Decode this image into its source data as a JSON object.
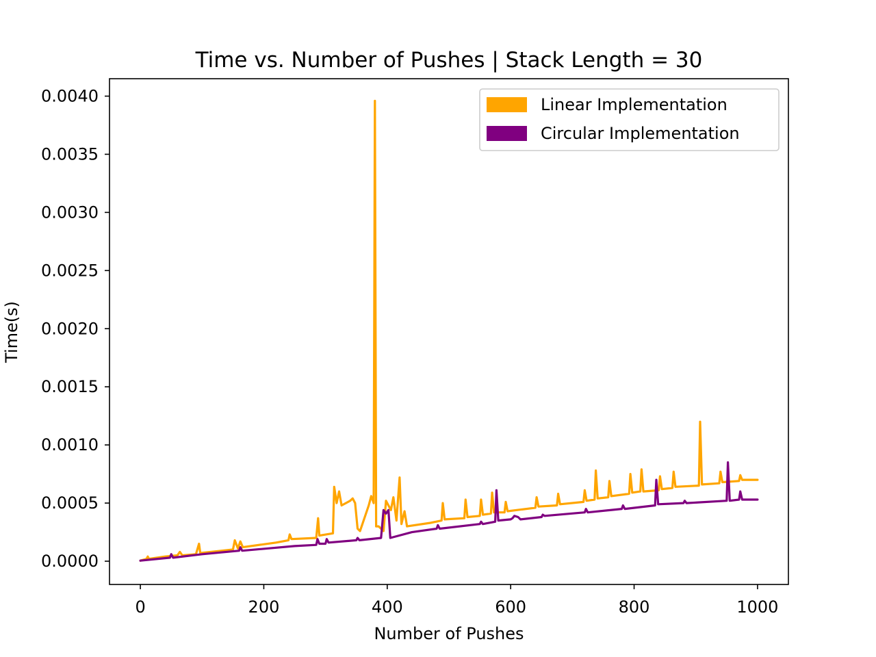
{
  "chart_data": {
    "type": "line",
    "title": "Time vs. Number of Pushes | Stack Length = 30",
    "xlabel": "Number of Pushes",
    "ylabel": "Time(s)",
    "xlim": [
      -50,
      1050
    ],
    "ylim": [
      -0.0002,
      0.00415
    ],
    "xticks": [
      0,
      200,
      400,
      600,
      800,
      1000
    ],
    "xtick_labels": [
      "0",
      "200",
      "400",
      "600",
      "800",
      "1000"
    ],
    "yticks": [
      0,
      0.0005,
      0.001,
      0.0015,
      0.002,
      0.0025,
      0.003,
      0.0035,
      0.004
    ],
    "ytick_labels": [
      "0.0000",
      "0.0005",
      "0.0010",
      "0.0015",
      "0.0020",
      "0.0025",
      "0.0030",
      "0.0035",
      "0.0040"
    ],
    "grid": false,
    "legend_position": "top-right",
    "series": [
      {
        "name": "Linear Implementation",
        "color": "#ffa500",
        "points": [
          [
            0,
            5e-06
          ],
          [
            10,
            2e-05
          ],
          [
            12,
            4e-05
          ],
          [
            14,
            2e-05
          ],
          [
            40,
            4e-05
          ],
          [
            60,
            5e-05
          ],
          [
            64,
            8e-05
          ],
          [
            68,
            5e-05
          ],
          [
            90,
            6e-05
          ],
          [
            95,
            0.00015
          ],
          [
            97,
            7e-05
          ],
          [
            150,
            0.0001
          ],
          [
            153,
            0.00018
          ],
          [
            158,
            0.00011
          ],
          [
            162,
            0.00017
          ],
          [
            166,
            0.00012
          ],
          [
            220,
            0.00016
          ],
          [
            240,
            0.00018
          ],
          [
            242,
            0.00023
          ],
          [
            245,
            0.00019
          ],
          [
            285,
            0.0002
          ],
          [
            288,
            0.00037
          ],
          [
            290,
            0.00022
          ],
          [
            312,
            0.00024
          ],
          [
            314,
            0.00064
          ],
          [
            318,
            0.0005
          ],
          [
            322,
            0.0006
          ],
          [
            326,
            0.00048
          ],
          [
            340,
            0.00052
          ],
          [
            344,
            0.00054
          ],
          [
            348,
            0.0005
          ],
          [
            352,
            0.00028
          ],
          [
            356,
            0.00026
          ],
          [
            370,
            0.00048
          ],
          [
            374,
            0.00056
          ],
          [
            378,
            0.0005
          ],
          [
            380,
            0.00396
          ],
          [
            382,
            0.0003
          ],
          [
            386,
            0.0003
          ],
          [
            394,
            0.00026
          ],
          [
            398,
            0.00052
          ],
          [
            402,
            0.00048
          ],
          [
            406,
            0.00044
          ],
          [
            410,
            0.00055
          ],
          [
            415,
            0.00035
          ],
          [
            420,
            0.00072
          ],
          [
            423,
            0.00032
          ],
          [
            428,
            0.00043
          ],
          [
            432,
            0.0003
          ],
          [
            470,
            0.00033
          ],
          [
            488,
            0.00035
          ],
          [
            490,
            0.0005
          ],
          [
            493,
            0.00036
          ],
          [
            525,
            0.00037
          ],
          [
            527,
            0.00053
          ],
          [
            530,
            0.00038
          ],
          [
            550,
            0.00039
          ],
          [
            552,
            0.00053
          ],
          [
            555,
            0.0004
          ],
          [
            568,
            0.00041
          ],
          [
            570,
            0.00059
          ],
          [
            573,
            0.00042
          ],
          [
            590,
            0.00042
          ],
          [
            592,
            0.00051
          ],
          [
            595,
            0.00043
          ],
          [
            640,
            0.00046
          ],
          [
            642,
            0.00055
          ],
          [
            645,
            0.00047
          ],
          [
            675,
            0.00048
          ],
          [
            677,
            0.00058
          ],
          [
            680,
            0.00049
          ],
          [
            718,
            0.00051
          ],
          [
            720,
            0.00061
          ],
          [
            723,
            0.00052
          ],
          [
            736,
            0.00053
          ],
          [
            738,
            0.00078
          ],
          [
            741,
            0.00054
          ],
          [
            758,
            0.00055
          ],
          [
            760,
            0.00069
          ],
          [
            763,
            0.00056
          ],
          [
            792,
            0.00058
          ],
          [
            794,
            0.00075
          ],
          [
            797,
            0.00059
          ],
          [
            810,
            0.0006
          ],
          [
            812,
            0.00079
          ],
          [
            815,
            0.0006
          ],
          [
            840,
            0.00061
          ],
          [
            842,
            0.00073
          ],
          [
            845,
            0.00062
          ],
          [
            862,
            0.00063
          ],
          [
            864,
            0.00077
          ],
          [
            867,
            0.00064
          ],
          [
            905,
            0.00065
          ],
          [
            907,
            0.0012
          ],
          [
            910,
            0.00066
          ],
          [
            938,
            0.00067
          ],
          [
            940,
            0.00077
          ],
          [
            943,
            0.00068
          ],
          [
            970,
            0.00069
          ],
          [
            972,
            0.00074
          ],
          [
            975,
            0.0007
          ],
          [
            1000,
            0.0007
          ]
        ]
      },
      {
        "name": "Circular Implementation",
        "color": "#800080",
        "points": [
          [
            0,
            5e-06
          ],
          [
            48,
            3e-05
          ],
          [
            50,
            6e-05
          ],
          [
            53,
            3e-05
          ],
          [
            100,
            6e-05
          ],
          [
            160,
            9e-05
          ],
          [
            162,
            0.00012
          ],
          [
            165,
            9e-05
          ],
          [
            250,
            0.00013
          ],
          [
            285,
            0.00014
          ],
          [
            287,
            0.00019
          ],
          [
            290,
            0.00015
          ],
          [
            300,
            0.00015
          ],
          [
            302,
            0.00019
          ],
          [
            305,
            0.00016
          ],
          [
            350,
            0.00018
          ],
          [
            352,
            0.0002
          ],
          [
            355,
            0.00018
          ],
          [
            390,
            0.0002
          ],
          [
            394,
            0.00044
          ],
          [
            398,
            0.00041
          ],
          [
            402,
            0.00044
          ],
          [
            405,
            0.0002
          ],
          [
            440,
            0.00025
          ],
          [
            480,
            0.00028
          ],
          [
            482,
            0.00031
          ],
          [
            485,
            0.00028
          ],
          [
            550,
            0.00032
          ],
          [
            552,
            0.00034
          ],
          [
            555,
            0.00032
          ],
          [
            575,
            0.00034
          ],
          [
            577,
            0.00061
          ],
          [
            580,
            0.00035
          ],
          [
            600,
            0.00036
          ],
          [
            603,
            0.00037
          ],
          [
            606,
            0.00039
          ],
          [
            612,
            0.00038
          ],
          [
            616,
            0.00036
          ],
          [
            650,
            0.00038
          ],
          [
            652,
            0.0004
          ],
          [
            655,
            0.00039
          ],
          [
            720,
            0.00042
          ],
          [
            722,
            0.00045
          ],
          [
            725,
            0.00042
          ],
          [
            780,
            0.00045
          ],
          [
            782,
            0.00048
          ],
          [
            785,
            0.00045
          ],
          [
            834,
            0.00048
          ],
          [
            836,
            0.0007
          ],
          [
            839,
            0.00049
          ],
          [
            880,
            0.0005
          ],
          [
            882,
            0.00052
          ],
          [
            885,
            0.0005
          ],
          [
            950,
            0.00052
          ],
          [
            952,
            0.00085
          ],
          [
            955,
            0.00052
          ],
          [
            970,
            0.00053
          ],
          [
            972,
            0.0006
          ],
          [
            975,
            0.00053
          ],
          [
            1000,
            0.00053
          ]
        ]
      }
    ]
  }
}
